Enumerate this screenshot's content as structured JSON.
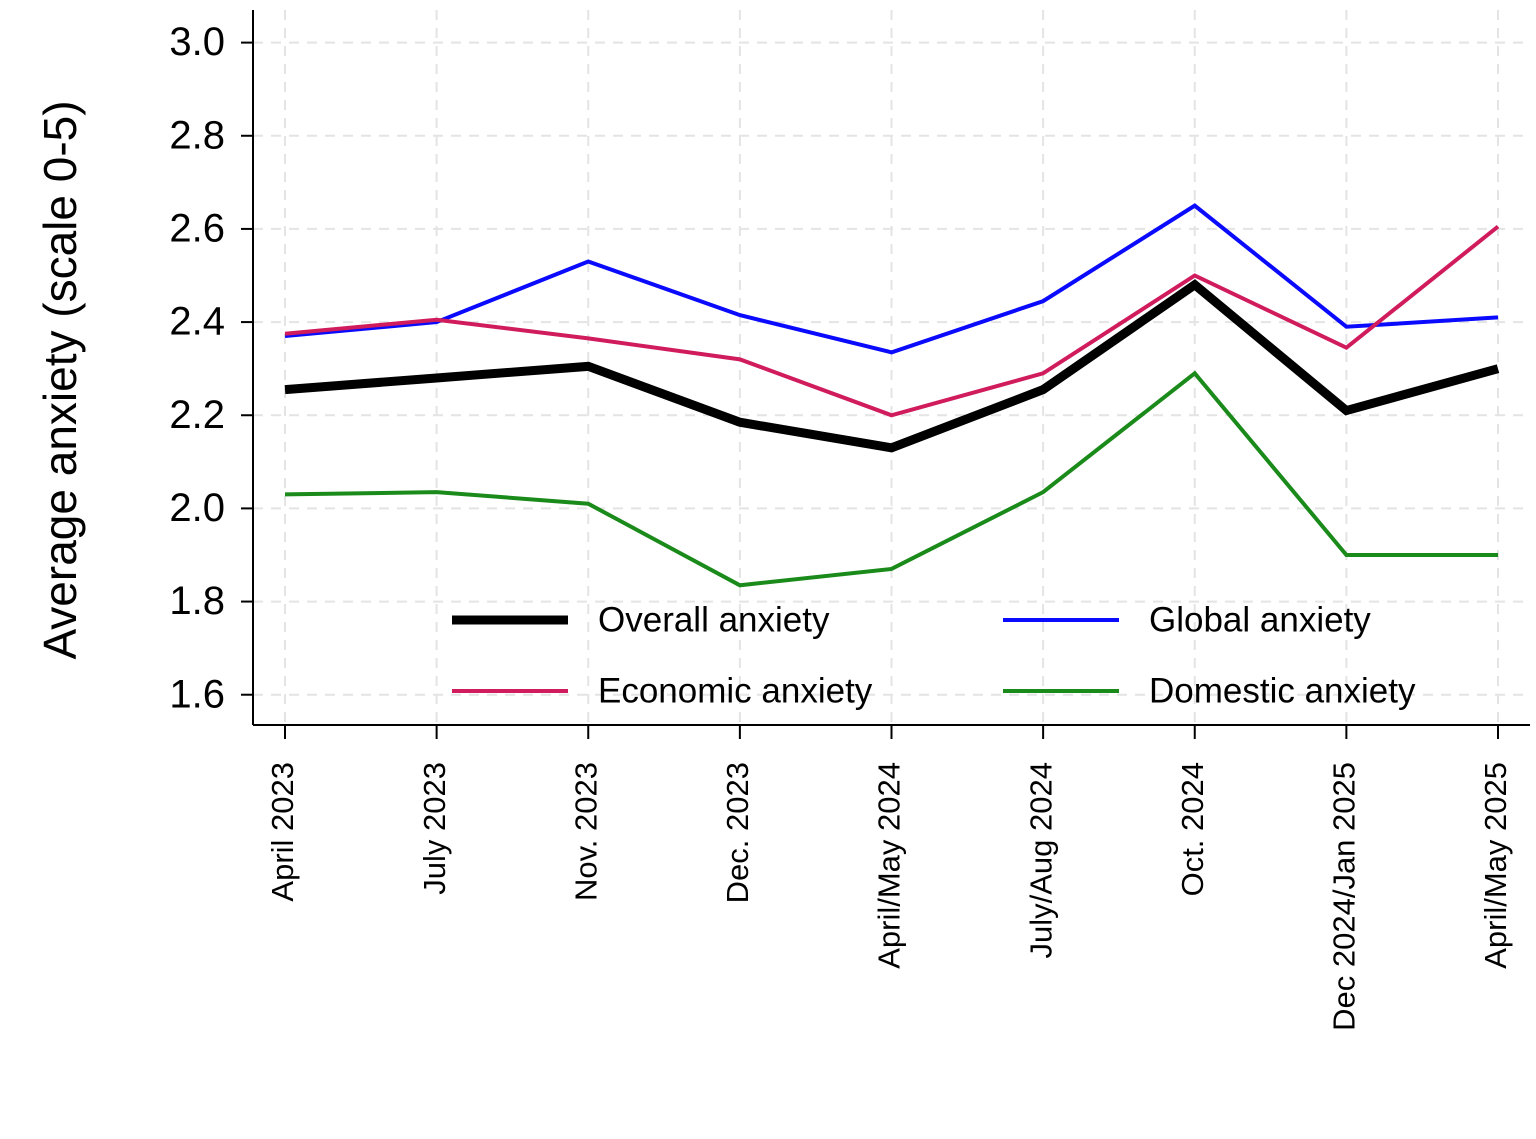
{
  "chart_data": {
    "type": "line",
    "ylabel": "Average anxiety (scale 0-5)",
    "categories": [
      "April 2023",
      "July 2023",
      "Nov. 2023",
      "Dec. 2023",
      "April/May 2024",
      "July/Aug 2024",
      "Oct. 2024",
      "Dec 2024/Jan 2025",
      "April/May 2025"
    ],
    "series": [
      {
        "name": "Overall anxiety",
        "color": "#000000",
        "line_width": 9,
        "values": [
          2.255,
          2.28,
          2.305,
          2.185,
          2.13,
          2.255,
          2.48,
          2.21,
          2.3
        ]
      },
      {
        "name": "Global anxiety",
        "color": "#0a0aff",
        "line_width": 4,
        "values": [
          2.37,
          2.4,
          2.53,
          2.415,
          2.335,
          2.445,
          2.65,
          2.39,
          2.41
        ]
      },
      {
        "name": "Economic anxiety",
        "color": "#d01c5c",
        "line_width": 4,
        "values": [
          2.375,
          2.405,
          2.365,
          2.32,
          2.2,
          2.29,
          2.5,
          2.345,
          2.605
        ]
      },
      {
        "name": "Domestic anxiety",
        "color": "#1a8a1a",
        "line_width": 4,
        "values": [
          2.03,
          2.035,
          2.01,
          1.835,
          1.87,
          2.035,
          2.29,
          1.9,
          1.9
        ]
      }
    ],
    "ylim": [
      1.535,
      3.07
    ],
    "yticks": [
      1.6,
      1.8,
      {
        "value": 2,
        "label": "2.0"
      },
      2.2,
      2.4,
      2.6,
      2.8,
      {
        "value": 3,
        "label": "3.0"
      }
    ],
    "grid": true,
    "legend": "bottom"
  }
}
